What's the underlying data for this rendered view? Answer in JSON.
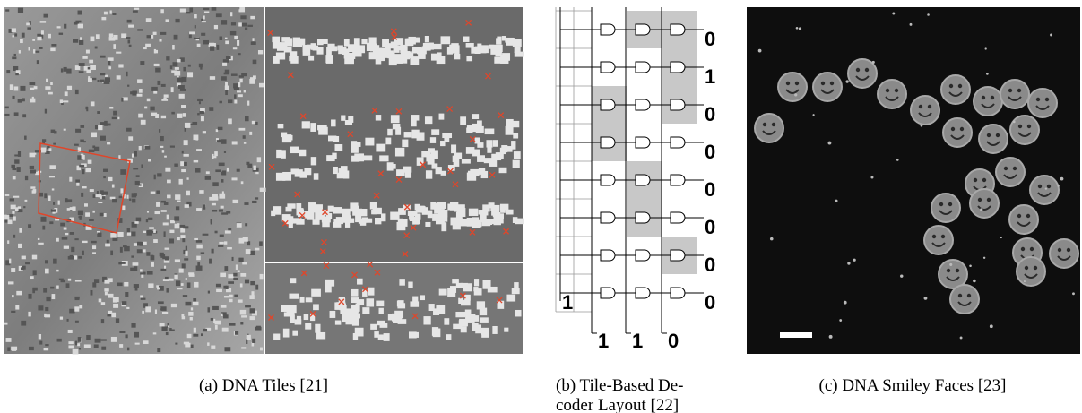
{
  "panels": [
    {
      "caption": "(a) DNA Tiles [21]"
    },
    {
      "caption_lines": [
        "(b) Tile-Based De-",
        "coder Layout [22]"
      ],
      "outputs": [
        "0",
        "1",
        "0",
        "0",
        "0",
        "0",
        "0",
        "0"
      ],
      "input_left": "1",
      "inputs": [
        "1",
        "1",
        "0"
      ]
    },
    {
      "caption": "(c) DNA Smiley Faces [23]"
    }
  ]
}
